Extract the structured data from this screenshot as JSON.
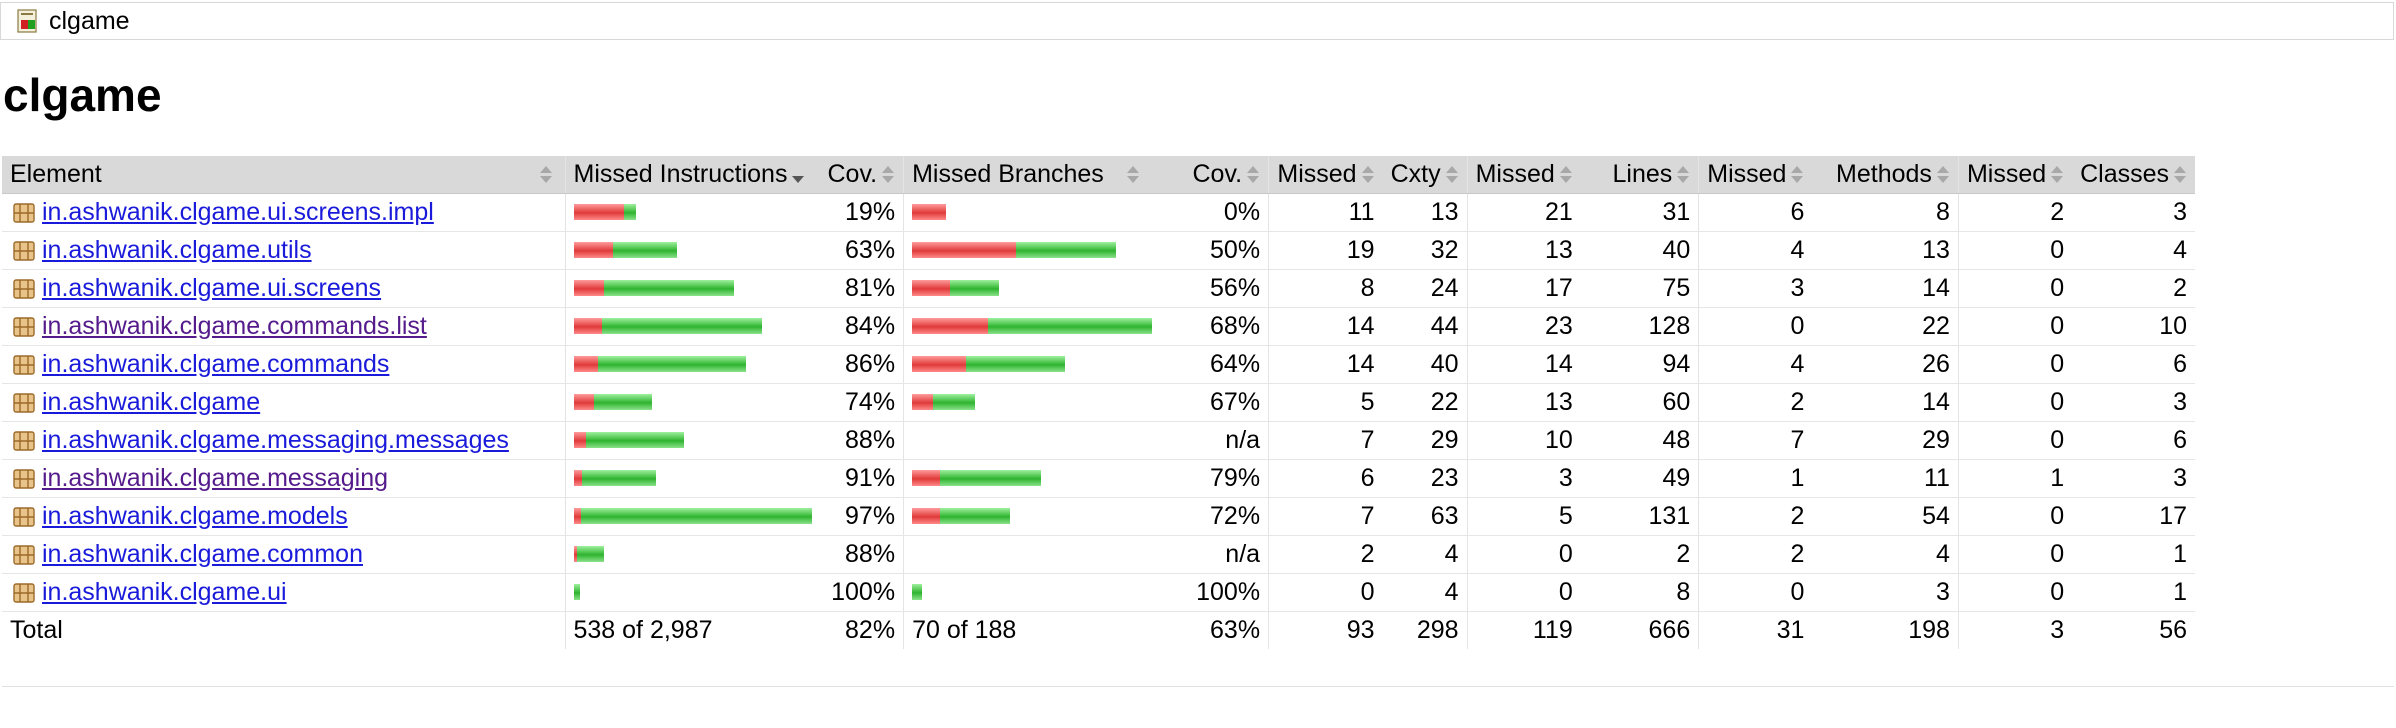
{
  "breadcrumb": {
    "label": "clgame",
    "icon": "report-icon"
  },
  "title": "clgame",
  "columns": {
    "element": "Element",
    "missed_instructions": "Missed Instructions",
    "cov_instr": "Cov.",
    "missed_branches": "Missed Branches",
    "cov_br": "Cov.",
    "missed_cxty": "Missed",
    "cxty": "Cxty",
    "missed_lines": "Missed",
    "lines": "Lines",
    "missed_methods": "Missed",
    "methods": "Methods",
    "missed_classes": "Missed",
    "classes": "Classes"
  },
  "colors": {
    "missed": "#e03a3a",
    "covered": "#2fb42f",
    "link": "#1a1adb",
    "visited": "#551a8b"
  },
  "rows": [
    {
      "name": "in.ashwanik.clgame.ui.screens.impl",
      "visited": false,
      "instr_missed": 50,
      "instr_covered": 12,
      "cov_instr": "19%",
      "br_missed": 34,
      "br_covered": 0,
      "cov_br": "0%",
      "missed_cxty": "11",
      "cxty": "13",
      "missed_lines": "21",
      "lines": "31",
      "missed_methods": "6",
      "methods": "8",
      "missed_classes": "2",
      "classes": "3"
    },
    {
      "name": "in.ashwanik.clgame.utils",
      "visited": false,
      "instr_missed": 39,
      "instr_covered": 64,
      "cov_instr": "63%",
      "br_missed": 104,
      "br_covered": 100,
      "cov_br": "50%",
      "missed_cxty": "19",
      "cxty": "32",
      "missed_lines": "13",
      "lines": "40",
      "missed_methods": "4",
      "methods": "13",
      "missed_classes": "0",
      "classes": "4"
    },
    {
      "name": "in.ashwanik.clgame.ui.screens",
      "visited": false,
      "instr_missed": 30,
      "instr_covered": 130,
      "cov_instr": "81%",
      "br_missed": 38,
      "br_covered": 49,
      "cov_br": "56%",
      "missed_cxty": "8",
      "cxty": "24",
      "missed_lines": "17",
      "lines": "75",
      "missed_methods": "3",
      "methods": "14",
      "missed_classes": "0",
      "classes": "2"
    },
    {
      "name": "in.ashwanik.clgame.commands.list",
      "visited": true,
      "instr_missed": 28,
      "instr_covered": 160,
      "cov_instr": "84%",
      "br_missed": 76,
      "br_covered": 164,
      "cov_br": "68%",
      "missed_cxty": "14",
      "cxty": "44",
      "missed_lines": "23",
      "lines": "128",
      "missed_methods": "0",
      "methods": "22",
      "missed_classes": "0",
      "classes": "10"
    },
    {
      "name": "in.ashwanik.clgame.commands",
      "visited": false,
      "instr_missed": 24,
      "instr_covered": 148,
      "cov_instr": "86%",
      "br_missed": 54,
      "br_covered": 99,
      "cov_br": "64%",
      "missed_cxty": "14",
      "cxty": "40",
      "missed_lines": "14",
      "lines": "94",
      "missed_methods": "4",
      "methods": "26",
      "missed_classes": "0",
      "classes": "6"
    },
    {
      "name": "in.ashwanik.clgame",
      "visited": false,
      "instr_missed": 20,
      "instr_covered": 58,
      "cov_instr": "74%",
      "br_missed": 21,
      "br_covered": 42,
      "cov_br": "67%",
      "missed_cxty": "5",
      "cxty": "22",
      "missed_lines": "13",
      "lines": "60",
      "missed_methods": "2",
      "methods": "14",
      "missed_classes": "0",
      "classes": "3"
    },
    {
      "name": "in.ashwanik.clgame.messaging.messages",
      "visited": false,
      "instr_missed": 12,
      "instr_covered": 98,
      "cov_instr": "88%",
      "br_missed": 0,
      "br_covered": 0,
      "cov_br": "n/a",
      "missed_cxty": "7",
      "cxty": "29",
      "missed_lines": "10",
      "lines": "48",
      "missed_methods": "7",
      "methods": "29",
      "missed_classes": "0",
      "classes": "6"
    },
    {
      "name": "in.ashwanik.clgame.messaging",
      "visited": true,
      "instr_missed": 8,
      "instr_covered": 74,
      "cov_instr": "91%",
      "br_missed": 28,
      "br_covered": 101,
      "cov_br": "79%",
      "missed_cxty": "6",
      "cxty": "23",
      "missed_lines": "3",
      "lines": "49",
      "missed_methods": "1",
      "methods": "11",
      "missed_classes": "1",
      "classes": "3"
    },
    {
      "name": "in.ashwanik.clgame.models",
      "visited": false,
      "instr_missed": 7,
      "instr_covered": 231,
      "cov_instr": "97%",
      "br_missed": 28,
      "br_covered": 70,
      "cov_br": "72%",
      "missed_cxty": "7",
      "cxty": "63",
      "missed_lines": "5",
      "lines": "131",
      "missed_methods": "2",
      "methods": "54",
      "missed_classes": "0",
      "classes": "17"
    },
    {
      "name": "in.ashwanik.clgame.common",
      "visited": false,
      "instr_missed": 3,
      "instr_covered": 27,
      "cov_instr": "88%",
      "br_missed": 0,
      "br_covered": 0,
      "cov_br": "n/a",
      "missed_cxty": "2",
      "cxty": "4",
      "missed_lines": "0",
      "lines": "2",
      "missed_methods": "2",
      "methods": "4",
      "missed_classes": "0",
      "classes": "1"
    },
    {
      "name": "in.ashwanik.clgame.ui",
      "visited": false,
      "instr_missed": 0,
      "instr_covered": 6,
      "cov_instr": "100%",
      "br_missed": 0,
      "br_covered": 10,
      "cov_br": "100%",
      "missed_cxty": "0",
      "cxty": "4",
      "missed_lines": "0",
      "lines": "8",
      "missed_methods": "0",
      "methods": "3",
      "missed_classes": "0",
      "classes": "1"
    }
  ],
  "total": {
    "label": "Total",
    "missed_instructions": "538 of 2,987",
    "cov_instr": "82%",
    "missed_branches": "70 of 188",
    "cov_br": "63%",
    "missed_cxty": "93",
    "cxty": "298",
    "missed_lines": "119",
    "lines": "666",
    "missed_methods": "31",
    "methods": "198",
    "missed_classes": "3",
    "classes": "56"
  }
}
